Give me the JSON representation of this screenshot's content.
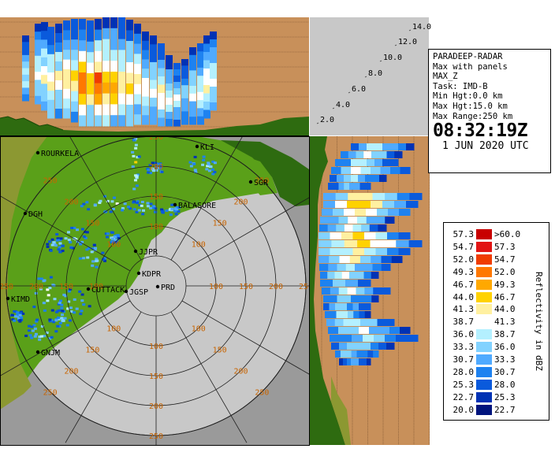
{
  "info": {
    "station": "PARADEEP-RADAR",
    "display": "Max with panels",
    "product": "MAX_Z",
    "task": "Task: IMD-B",
    "min_hgt": "Min Hgt:0.0 km",
    "max_hgt": "Max Hgt:15.0 km",
    "max_range": "Max Range:250 km",
    "time": "08:32:19Z",
    "date": "1 JUN 2020 UTC"
  },
  "legend": {
    "title": "Reflectivity in dBZ",
    "entries": [
      {
        "lo": "57.3",
        "hi": ">60.0",
        "color": "#c80000"
      },
      {
        "lo": "54.7",
        "hi": "57.3",
        "color": "#e21414"
      },
      {
        "lo": "52.0",
        "hi": "54.7",
        "color": "#f03c00"
      },
      {
        "lo": "49.3",
        "hi": "52.0",
        "color": "#ff7800"
      },
      {
        "lo": "46.7",
        "hi": "49.3",
        "color": "#ffa800"
      },
      {
        "lo": "44.0",
        "hi": "46.7",
        "color": "#ffd200"
      },
      {
        "lo": "41.3",
        "hi": "44.0",
        "color": "#fff0a0"
      },
      {
        "lo": "38.7",
        "hi": "41.3",
        "color": "#ffffff"
      },
      {
        "lo": "36.0",
        "hi": "38.7",
        "color": "#b4f0ff"
      },
      {
        "lo": "33.3",
        "hi": "36.0",
        "color": "#82d2ff"
      },
      {
        "lo": "30.7",
        "hi": "33.3",
        "color": "#50aaff"
      },
      {
        "lo": "28.0",
        "hi": "30.7",
        "color": "#1e82f0"
      },
      {
        "lo": "25.3",
        "hi": "28.0",
        "color": "#0a5adc"
      },
      {
        "lo": "22.7",
        "hi": "25.3",
        "color": "#0032b4"
      },
      {
        "lo": "20.0",
        "hi": "22.7",
        "color": "#00147d"
      }
    ]
  },
  "height_scale": [
    "2.0",
    "4.0",
    "6.0",
    "8.0",
    "10.0",
    "12.0",
    "14.0"
  ],
  "range_labels": [
    "50",
    "100",
    "150",
    "200",
    "250"
  ],
  "cities": [
    {
      "name": "ROURKELA",
      "label": "ROURKELA"
    },
    {
      "name": "KLI",
      "label": "KLI"
    },
    {
      "name": "SGR",
      "label": "SGR"
    },
    {
      "name": "DGH",
      "label": "DGH"
    },
    {
      "name": "BALASORE",
      "label": "BALASORE"
    },
    {
      "name": "JJPR",
      "label": "JJPR"
    },
    {
      "name": "KDPR",
      "label": "KDPR"
    },
    {
      "name": "PRD",
      "label": "PRD"
    },
    {
      "name": "CUTTACK",
      "label": "CUTTACK"
    },
    {
      "name": "JGSP",
      "label": "JGSP"
    },
    {
      "name": "KIMD",
      "label": "KIMD"
    },
    {
      "name": "GNJM",
      "label": "GNJM"
    }
  ],
  "colors": {
    "land_green": "#5aa019",
    "land_brown": "#8c9832",
    "sea_gray": "#c8c8c8",
    "outer_gray": "#9a9a9a",
    "panel_tan": "#c8905a",
    "panel_gray": "#c8c8c8",
    "range_ring": "#1e1e1e",
    "range_label": "#c86400"
  }
}
